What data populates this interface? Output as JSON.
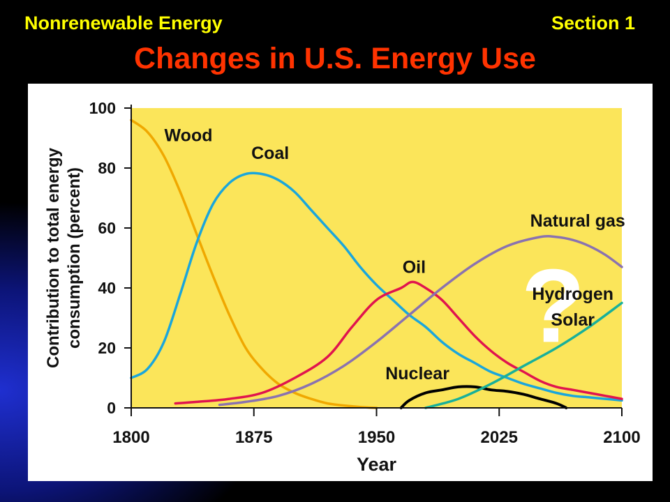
{
  "header": {
    "left_label": "Nonrenewable Energy",
    "right_label": "Section 1",
    "title": "Changes in U.S. Energy Use"
  },
  "colors": {
    "plot_background": "#fbe55a",
    "wood": "#f0a800",
    "coal": "#1aa6dc",
    "oil": "#e0144e",
    "natural_gas": "#8a72b0",
    "hydrogen_solar": "#18b09a",
    "nuclear": "#000000",
    "question_mark": "#ffffff"
  },
  "chart_data": {
    "type": "line",
    "xlabel": "Year",
    "ylabel": "Contribution to total energy consumption (percent)",
    "ylabel_lines": [
      "Contribution to total energy",
      "consumption (percent)"
    ],
    "xlim": [
      1800,
      2100
    ],
    "ylim": [
      0,
      100
    ],
    "x_ticks": [
      1800,
      1875,
      1950,
      2025,
      2100
    ],
    "y_ticks": [
      0,
      20,
      40,
      60,
      80,
      100
    ],
    "annotation": "?",
    "series": [
      {
        "name": "Wood",
        "key": "wood",
        "points": [
          [
            1800,
            96
          ],
          [
            1810,
            92
          ],
          [
            1820,
            84
          ],
          [
            1830,
            72
          ],
          [
            1840,
            58
          ],
          [
            1850,
            44
          ],
          [
            1860,
            31
          ],
          [
            1870,
            20
          ],
          [
            1880,
            13
          ],
          [
            1890,
            8
          ],
          [
            1900,
            5
          ],
          [
            1910,
            3
          ],
          [
            1920,
            1.5
          ],
          [
            1930,
            0.8
          ],
          [
            1940,
            0.3
          ],
          [
            1950,
            0
          ]
        ]
      },
      {
        "name": "Coal",
        "key": "coal",
        "points": [
          [
            1800,
            10
          ],
          [
            1810,
            13
          ],
          [
            1820,
            22
          ],
          [
            1830,
            38
          ],
          [
            1840,
            55
          ],
          [
            1850,
            68
          ],
          [
            1860,
            75
          ],
          [
            1870,
            78
          ],
          [
            1880,
            78
          ],
          [
            1890,
            76
          ],
          [
            1900,
            72
          ],
          [
            1910,
            66
          ],
          [
            1920,
            60
          ],
          [
            1930,
            54
          ],
          [
            1940,
            47
          ],
          [
            1950,
            41
          ],
          [
            1960,
            36
          ],
          [
            1970,
            31
          ],
          [
            1980,
            27
          ],
          [
            1990,
            22
          ],
          [
            2000,
            18
          ],
          [
            2010,
            15
          ],
          [
            2020,
            12
          ],
          [
            2030,
            10
          ],
          [
            2040,
            8
          ],
          [
            2050,
            6.5
          ],
          [
            2060,
            5
          ],
          [
            2070,
            4
          ],
          [
            2080,
            3.5
          ],
          [
            2090,
            3
          ],
          [
            2100,
            2.5
          ]
        ]
      },
      {
        "name": "Oil",
        "key": "oil",
        "points": [
          [
            1827,
            1.5
          ],
          [
            1840,
            2
          ],
          [
            1860,
            3
          ],
          [
            1880,
            5
          ],
          [
            1900,
            10
          ],
          [
            1920,
            17
          ],
          [
            1935,
            27
          ],
          [
            1950,
            36
          ],
          [
            1965,
            40
          ],
          [
            1972,
            42
          ],
          [
            1980,
            40
          ],
          [
            1990,
            36
          ],
          [
            2000,
            30
          ],
          [
            2010,
            24
          ],
          [
            2020,
            19
          ],
          [
            2030,
            15
          ],
          [
            2040,
            12
          ],
          [
            2050,
            9
          ],
          [
            2060,
            7
          ],
          [
            2070,
            6
          ],
          [
            2080,
            5
          ],
          [
            2090,
            4
          ],
          [
            2100,
            3
          ]
        ]
      },
      {
        "name": "Natural gas",
        "key": "natural_gas",
        "points": [
          [
            1854,
            1
          ],
          [
            1870,
            2
          ],
          [
            1890,
            4
          ],
          [
            1910,
            8
          ],
          [
            1930,
            14
          ],
          [
            1950,
            22
          ],
          [
            1970,
            31
          ],
          [
            1990,
            40
          ],
          [
            2010,
            48
          ],
          [
            2030,
            54
          ],
          [
            2050,
            57
          ],
          [
            2060,
            57
          ],
          [
            2070,
            56
          ],
          [
            2080,
            54
          ],
          [
            2090,
            51
          ],
          [
            2100,
            47
          ]
        ]
      },
      {
        "name": "Nuclear",
        "key": "nuclear",
        "points": [
          [
            1965,
            0
          ],
          [
            1970,
            2.5
          ],
          [
            1980,
            5
          ],
          [
            1990,
            6
          ],
          [
            2000,
            7
          ],
          [
            2010,
            7
          ],
          [
            2020,
            6
          ],
          [
            2030,
            5.5
          ],
          [
            2040,
            4.5
          ],
          [
            2050,
            3
          ],
          [
            2060,
            1.5
          ],
          [
            2066,
            0
          ]
        ]
      },
      {
        "name": "Hydrogen Solar",
        "key": "hydrogen_solar",
        "points": [
          [
            1980,
            0
          ],
          [
            2000,
            3
          ],
          [
            2020,
            8
          ],
          [
            2040,
            14
          ],
          [
            2060,
            20
          ],
          [
            2080,
            27
          ],
          [
            2100,
            35
          ]
        ]
      }
    ],
    "labels": [
      {
        "text": "Wood",
        "x": 1835,
        "y": 89
      },
      {
        "text": "Coal",
        "x": 1885,
        "y": 83
      },
      {
        "text": "Oil",
        "x": 1973,
        "y": 45
      },
      {
        "text": "Natural gas",
        "x": 2073,
        "y": 60.5
      },
      {
        "text": "Hydrogen",
        "x": 2070,
        "y": 36
      },
      {
        "text": "Solar",
        "x": 2070,
        "y": 27.5
      },
      {
        "text": "Nuclear",
        "x": 1975,
        "y": 9.5
      }
    ]
  }
}
